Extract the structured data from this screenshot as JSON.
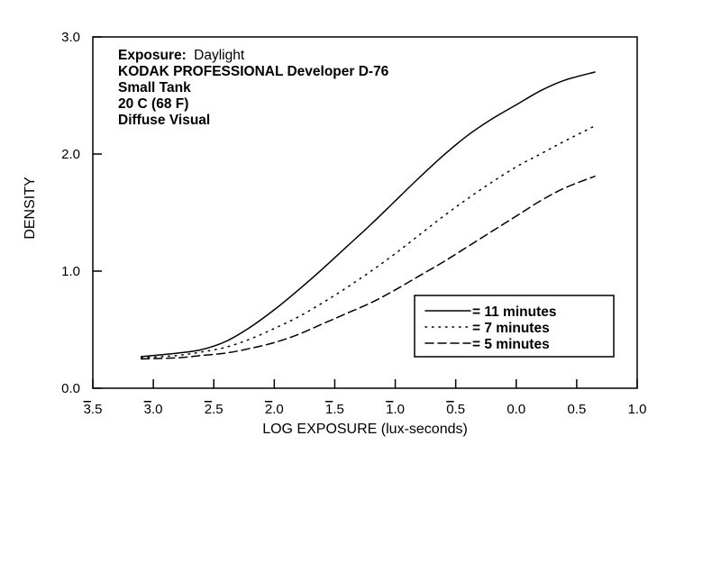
{
  "chart_data": {
    "type": "line",
    "xlabel": "LOG EXPOSURE (lux-seconds)",
    "ylabel": "DENSITY",
    "xlim": [
      -3.5,
      1.0
    ],
    "ylim": [
      0.0,
      3.0
    ],
    "x_ticks": [
      -3.5,
      -3.0,
      -2.5,
      -2.0,
      -1.5,
      -1.0,
      -0.5,
      0.0,
      0.5,
      1.0
    ],
    "x_tick_labels": [
      {
        "bar": "3",
        "rest": ".5"
      },
      {
        "bar": "3",
        "rest": ".0"
      },
      {
        "bar": "2",
        "rest": ".5"
      },
      {
        "bar": "2",
        "rest": ".0"
      },
      {
        "bar": "1",
        "rest": ".5"
      },
      {
        "bar": "1",
        "rest": ".0"
      },
      {
        "bar": "0",
        "rest": ".5"
      },
      {
        "bar": "",
        "rest": "0.0"
      },
      {
        "bar": "",
        "rest": "0.5"
      },
      {
        "bar": "",
        "rest": "1.0"
      }
    ],
    "y_ticks": [
      0.0,
      1.0,
      2.0,
      3.0
    ],
    "y_tick_labels": [
      "0.0",
      "1.0",
      "2.0",
      "3.0"
    ],
    "info": {
      "exposure_label": "Exposure:",
      "exposure_value": "Daylight",
      "line2": "KODAK PROFESSIONAL Developer D-76",
      "line3": "Small Tank",
      "line4": "20 C (68 F)",
      "line5": "Diffuse Visual"
    },
    "legend_placement": "bottom-right",
    "series": [
      {
        "name": "= 11 minutes",
        "style": "solid",
        "x": [
          -3.1,
          -2.8,
          -2.6,
          -2.4,
          -2.2,
          -2.0,
          -1.8,
          -1.6,
          -1.4,
          -1.2,
          -1.0,
          -0.8,
          -0.6,
          -0.4,
          -0.2,
          0.0,
          0.2,
          0.4,
          0.65
        ],
        "y": [
          0.27,
          0.3,
          0.33,
          0.4,
          0.52,
          0.67,
          0.84,
          1.02,
          1.21,
          1.4,
          1.6,
          1.8,
          1.99,
          2.16,
          2.3,
          2.42,
          2.54,
          2.63,
          2.7
        ]
      },
      {
        "name": "= 7 minutes",
        "style": "dotted",
        "x": [
          -3.1,
          -2.8,
          -2.6,
          -2.4,
          -2.2,
          -2.0,
          -1.8,
          -1.6,
          -1.4,
          -1.2,
          -1.0,
          -0.8,
          -0.6,
          -0.4,
          -0.2,
          0.0,
          0.2,
          0.4,
          0.65
        ],
        "y": [
          0.26,
          0.28,
          0.31,
          0.35,
          0.42,
          0.51,
          0.61,
          0.73,
          0.86,
          1.0,
          1.15,
          1.31,
          1.47,
          1.62,
          1.76,
          1.89,
          2.0,
          2.11,
          2.24
        ]
      },
      {
        "name": "= 5 minutes",
        "style": "dashed",
        "x": [
          -3.1,
          -2.8,
          -2.6,
          -2.4,
          -2.2,
          -2.0,
          -1.8,
          -1.6,
          -1.4,
          -1.2,
          -1.0,
          -0.8,
          -0.6,
          -0.4,
          -0.2,
          0.0,
          0.2,
          0.4,
          0.65
        ],
        "y": [
          0.25,
          0.26,
          0.28,
          0.3,
          0.34,
          0.39,
          0.46,
          0.55,
          0.64,
          0.73,
          0.84,
          0.96,
          1.08,
          1.21,
          1.34,
          1.47,
          1.6,
          1.71,
          1.81
        ]
      }
    ]
  }
}
